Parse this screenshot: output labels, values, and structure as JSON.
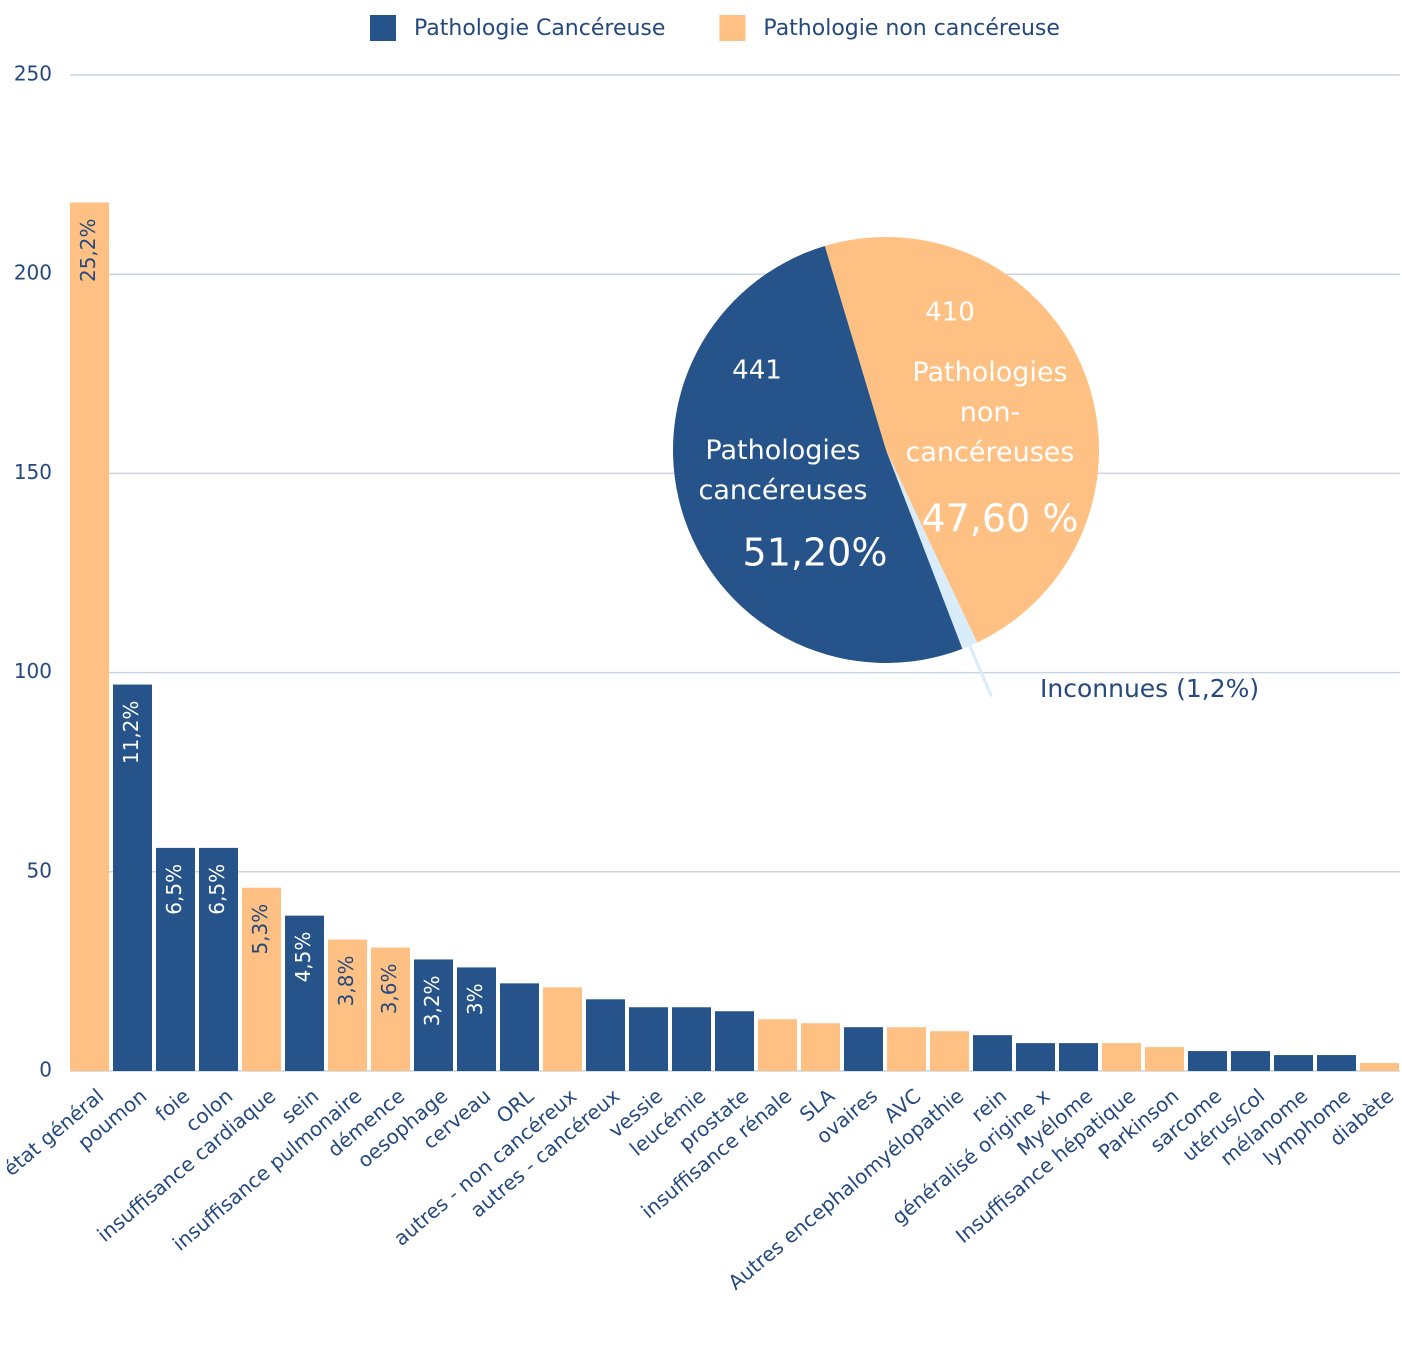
{
  "chart_data": [
    {
      "type": "bar",
      "categories": [
        "état général",
        "poumon",
        "foie",
        "colon",
        "insuffisance cardiaque",
        "sein",
        "insuffisance pulmonaire",
        "démence",
        "oesophage",
        "cerveau",
        "ORL",
        "autres - non cancéreux",
        "autres - cancéreux",
        "vessie",
        "leucémie",
        "prostate",
        "insuffisance rénale",
        "SLA",
        "ovaires",
        "AVC",
        "Autres encephalomyélopathie",
        "rein",
        "généralisé origine x",
        "Myélome",
        "Insuffisance hépatique",
        "Parkinson",
        "sarcome",
        "utérus/col",
        "mélanome",
        "lymphome",
        "diabète"
      ],
      "series": [
        {
          "name": "Pathologie Cancéreuse",
          "color": "#26548a",
          "values": [
            null,
            97,
            56,
            56,
            null,
            39,
            null,
            null,
            28,
            26,
            22,
            null,
            18,
            16,
            16,
            15,
            null,
            null,
            11,
            null,
            null,
            9,
            7,
            7,
            null,
            null,
            5,
            5,
            4,
            4,
            null
          ],
          "labels": [
            null,
            "11,2%",
            "6,5%",
            "6,5%",
            null,
            "4,5%",
            null,
            null,
            "3,2%",
            "3%",
            null,
            null,
            null,
            null,
            null,
            null,
            null,
            null,
            null,
            null,
            null,
            null,
            null,
            null,
            null,
            null,
            null,
            null,
            null,
            null,
            null
          ]
        },
        {
          "name": "Pathologie non cancéreuse",
          "color": "#ffc183",
          "values": [
            218,
            null,
            null,
            null,
            46,
            null,
            33,
            31,
            null,
            null,
            null,
            21,
            null,
            null,
            null,
            null,
            13,
            12,
            null,
            11,
            10,
            null,
            null,
            null,
            7,
            6,
            null,
            null,
            null,
            null,
            2
          ],
          "labels": [
            "25,2%",
            null,
            null,
            null,
            "5,3%",
            null,
            "3,8%",
            "3,6%",
            null,
            null,
            null,
            null,
            null,
            null,
            null,
            null,
            null,
            null,
            null,
            null,
            null,
            null,
            null,
            null,
            null,
            null,
            null,
            null,
            null,
            null,
            null
          ]
        }
      ],
      "ylim": [
        0,
        250
      ],
      "yticks": [
        0,
        50,
        100,
        150,
        200,
        250
      ],
      "grid": true
    },
    {
      "type": "pie",
      "categories": [
        "Pathologies non-cancéreuses",
        "Inconnues (1,2%)",
        "Pathologies cancéreuses"
      ],
      "values": [
        47.6,
        1.2,
        51.2
      ],
      "value_labels": [
        "47,60 %",
        null,
        "51,20%"
      ],
      "counts": [
        410,
        null,
        441
      ],
      "colors": [
        "#ffc183",
        "#d8ecfa",
        "#26548a"
      ]
    }
  ]
}
